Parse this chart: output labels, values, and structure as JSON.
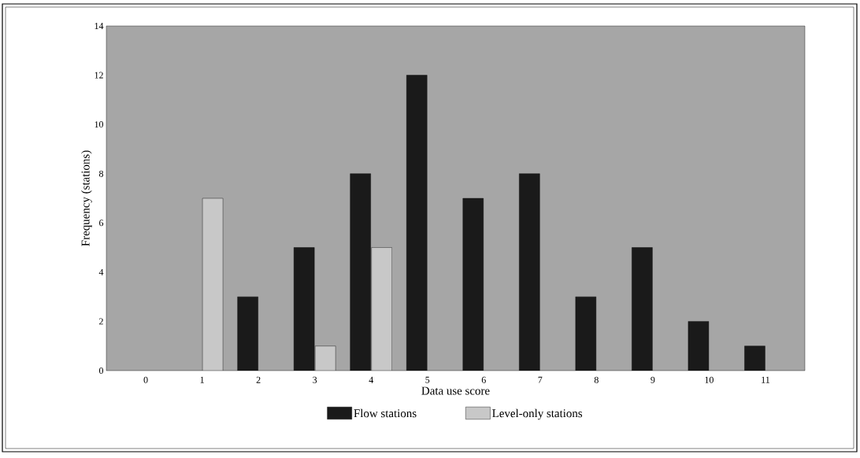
{
  "chart_data": {
    "type": "bar",
    "xlabel": "Data use score",
    "ylabel": "Frequency (stations)",
    "categories": [
      "0",
      "1",
      "2",
      "3",
      "4",
      "5",
      "6",
      "7",
      "8",
      "9",
      "10",
      "11"
    ],
    "series": [
      {
        "name": "Flow stations",
        "color": "#1a1a1a",
        "values": [
          null,
          null,
          3,
          5,
          8,
          12,
          7,
          8,
          3,
          5,
          2,
          1
        ]
      },
      {
        "name": "Level-only stations",
        "color": "#c8c8c8",
        "values": [
          null,
          7,
          null,
          1,
          5,
          null,
          null,
          null,
          null,
          null,
          null,
          null
        ]
      }
    ],
    "ylim": [
      0,
      14
    ],
    "yticks": [
      0,
      2,
      4,
      6,
      8,
      10,
      12,
      14
    ],
    "grid": false,
    "legend": "bottom"
  }
}
